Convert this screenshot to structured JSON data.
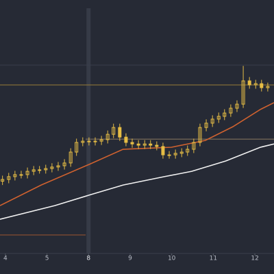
{
  "chart_data": {
    "type": "candlestick",
    "x": [
      -0.07,
      0.08,
      0.23,
      0.38,
      0.53,
      0.68,
      0.82,
      0.97,
      1.12,
      1.27,
      1.42,
      1.57,
      1.71,
      1.86,
      2.01,
      2.16,
      2.31,
      2.46,
      2.6,
      2.75,
      2.9,
      3.05,
      3.2,
      3.35,
      3.49,
      3.64,
      3.79,
      3.94,
      4.09,
      4.24,
      4.38,
      4.53,
      4.68,
      4.83,
      4.98,
      5.13,
      5.27,
      5.42,
      5.57,
      5.72,
      5.87,
      6.02,
      6.16,
      6.31
    ],
    "open": [
      28.5,
      29.2,
      30.3,
      31.1,
      31.1,
      32.4,
      33,
      33,
      33.5,
      34.1,
      34.6,
      35.7,
      40,
      43.8,
      44.3,
      44.1,
      44.3,
      44.9,
      47,
      49.7,
      45.9,
      43.8,
      43.2,
      42.7,
      43.2,
      42.7,
      42.2,
      38.9,
      38.9,
      39.5,
      40,
      41.1,
      43.8,
      49.7,
      51.4,
      53,
      54.1,
      55.4,
      57.3,
      58.9,
      68.1,
      66.5,
      67,
      65.4
    ],
    "high": [
      30.7,
      31.8,
      32.6,
      32.6,
      33.9,
      34.5,
      34.5,
      35,
      35.6,
      36.1,
      37.2,
      41.5,
      45.3,
      45.8,
      45.8,
      45.8,
      46.4,
      48.5,
      51.2,
      51.2,
      47.4,
      45.3,
      44.7,
      44.7,
      44.7,
      44.2,
      43.7,
      40.4,
      41,
      41.5,
      42.6,
      45.3,
      51.2,
      52.9,
      54.5,
      55.6,
      56.9,
      58.8,
      60.4,
      74,
      69.6,
      68.5,
      68.5,
      67.4
    ],
    "low": [
      27,
      27.7,
      28.8,
      29.6,
      29.6,
      30.9,
      31.5,
      31.5,
      32,
      32.6,
      33.1,
      34.2,
      38.5,
      42.3,
      42.6,
      42.6,
      42.8,
      43.4,
      45.5,
      44.4,
      42.3,
      41.7,
      41.2,
      41.2,
      41.2,
      40.7,
      37.4,
      37.4,
      37.4,
      38,
      38.5,
      39.6,
      42.3,
      48.2,
      49.9,
      51.5,
      52.6,
      53.9,
      55.8,
      57.4,
      65,
      65,
      63.9,
      63.9
    ],
    "close": [
      29.2,
      30.3,
      31.1,
      31.1,
      32.4,
      33,
      33,
      33.5,
      34.1,
      34.6,
      35.7,
      40,
      43.8,
      44.3,
      44.1,
      44.3,
      44.9,
      47,
      49.7,
      45.9,
      43.8,
      43.2,
      42.7,
      43.2,
      42.7,
      42.2,
      38.9,
      38.9,
      39.5,
      40,
      41.1,
      43.8,
      49.7,
      51.4,
      53,
      54.1,
      55.4,
      57.3,
      58.9,
      68.1,
      66.5,
      67,
      65.4,
      65.9
    ],
    "color": "#e6bd45",
    "lines": [
      {
        "color": "#d0622f",
        "x": [
          -0.13,
          0.86,
          2.01,
          2.83,
          3.99,
          4.81,
          5.47,
          6.13,
          6.46
        ],
        "values": [
          18.9,
          27,
          35.1,
          41.1,
          41.9,
          44.6,
          50,
          56.8,
          59.5
        ]
      },
      {
        "color": "#f2f2f2",
        "x": [
          -0.13,
          1.19,
          2.01,
          2.83,
          3.82,
          4.48,
          5.3,
          6.13,
          6.46
        ],
        "values": [
          13.5,
          18.9,
          23,
          27,
          30.3,
          32.4,
          36.5,
          41.9,
          43.2
        ]
      }
    ],
    "levels": [
      {
        "value": 66.5,
        "from": -0.13,
        "to": 6.46,
        "color": "#9a7d36"
      },
      {
        "value": 45.1,
        "from": 1.93,
        "to": 6.46,
        "color": "#8d7a62"
      },
      {
        "value": 7.3,
        "from": -0.13,
        "to": 1.93,
        "color": "#a0572f"
      }
    ],
    "crosshair_x": 2,
    "xlim": [
      -0.13,
      6.46
    ],
    "ylim": [
      0,
      100
    ],
    "xticks": [
      {
        "value": 0,
        "label": "4"
      },
      {
        "value": 1,
        "label": "5"
      },
      {
        "value": 2,
        "label": "8"
      },
      {
        "value": 3,
        "label": "9"
      },
      {
        "value": 4,
        "label": "10"
      },
      {
        "value": 5,
        "label": "11"
      },
      {
        "value": 6,
        "label": "12"
      }
    ]
  }
}
